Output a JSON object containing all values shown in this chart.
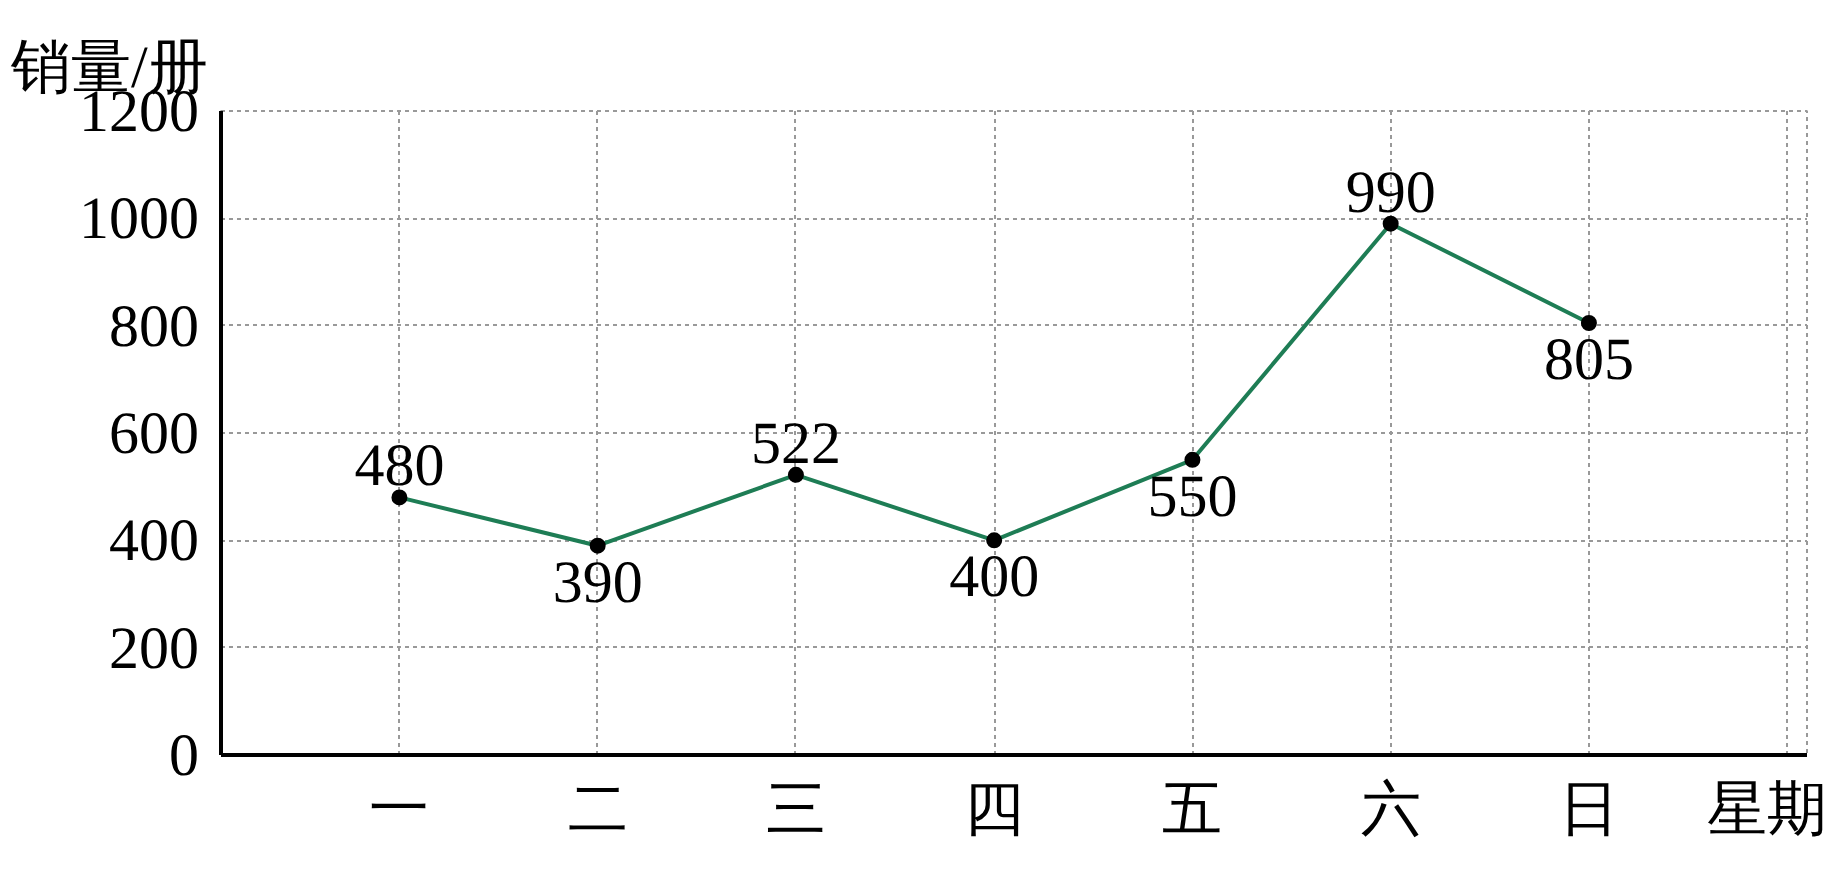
{
  "chart_data": {
    "type": "line",
    "ylabel": "销量/册",
    "xlabel": "星期",
    "categories": [
      "一",
      "二",
      "三",
      "四",
      "五",
      "六",
      "日"
    ],
    "series": [
      {
        "color": "#1e7d55",
        "values": [
          480,
          390,
          522,
          400,
          550,
          990,
          805
        ]
      }
    ],
    "ylim": [
      0,
      1200
    ],
    "yticks": [
      0,
      200,
      400,
      600,
      800,
      1000,
      1200
    ],
    "grid": true,
    "marker": "circle",
    "line_style": "solid",
    "data_labels": true
  }
}
